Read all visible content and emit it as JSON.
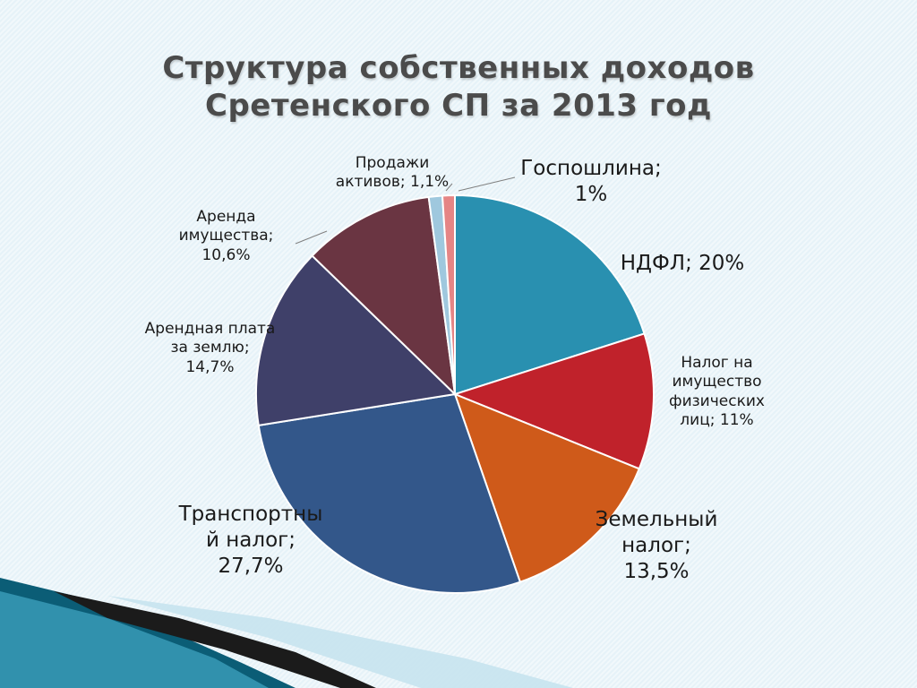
{
  "colors": {
    "background": "#eaf4f9",
    "title": "#4b4b4b",
    "swoosh_dark": "#0b5d76",
    "swoosh_light": "#3fa3c0"
  },
  "chart_data": {
    "type": "pie",
    "title": "Структура  собственных доходов Сретенского СП  за 2013 год",
    "title_lines": [
      "Структура  собственных доходов",
      "Сретенского СП  за 2013 год"
    ],
    "unit": "%",
    "slices": [
      {
        "name": "НДФЛ",
        "value": 20,
        "value_label": "20%",
        "label": "НДФЛ; 20%",
        "color": "#2990b0"
      },
      {
        "name": "Налог на имущество физических лиц",
        "value": 11,
        "value_label": "11%",
        "label": "Налог на\nимущество\nфизических\nлиц; 11%",
        "color": "#c0222b"
      },
      {
        "name": "Земельный налог",
        "value": 13.5,
        "value_label": "13,5%",
        "label": "Земельный\nналог;\n13,5%",
        "color": "#cf5a1a"
      },
      {
        "name": "Транспортный налог",
        "value": 27.7,
        "value_label": "27,7%",
        "label": "Транспортны\nй налог;\n27,7%",
        "color": "#33578a"
      },
      {
        "name": "Арендная плата за землю",
        "value": 14.7,
        "value_label": "14,7%",
        "label": "Арендная плата\nза землю;\n14,7%",
        "color": "#3f4069"
      },
      {
        "name": "Аренда имущества",
        "value": 10.6,
        "value_label": "10,6%",
        "label": "Аренда\nимущества;\n10,6%",
        "color": "#6a3542"
      },
      {
        "name": "Продажи активов",
        "value": 1.1,
        "value_label": "1,1%",
        "label": "Продажи\nактивов; 1,1%",
        "color": "#9fc8de"
      },
      {
        "name": "Госпошлина",
        "value": 1,
        "value_label": "1%",
        "label": "Госпошлина;\n1%",
        "color": "#e58585"
      }
    ]
  }
}
